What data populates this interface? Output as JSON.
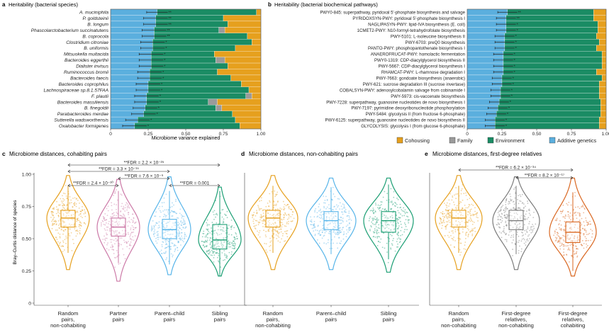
{
  "panel_a": {
    "letter": "a",
    "title": "Heritability (bacterial species)",
    "xlabel": "Microbiome variance explained",
    "ticks": [
      "0",
      "0.25",
      "0.50",
      "0.75",
      "1.00"
    ]
  },
  "panel_b": {
    "letter": "b",
    "title": "Heritability (bacterial biochemical pathways)",
    "ticks": [
      "0",
      "0.25",
      "0.50",
      "0.75",
      "1.00"
    ]
  },
  "legend": {
    "items": [
      {
        "label": "Cohousing",
        "color": "#E6A01E"
      },
      {
        "label": "Family",
        "color": "#9B9B9B"
      },
      {
        "label": "Environment",
        "color": "#1A8C64"
      },
      {
        "label": "Additive genetics",
        "color": "#5BAFDE"
      }
    ]
  },
  "panel_c": {
    "letter": "c",
    "title": "Microbiome distances, cohabiting pairs",
    "ylabel": "Bray–Curtis distance of species",
    "yticks": [
      "0",
      "0.25",
      "0.50",
      "0.75",
      "1.00"
    ],
    "categories": [
      "Random pairs, non-cohabiting",
      "Partner pairs",
      "Parent–child pairs",
      "Sibling pairs"
    ],
    "cat_lines": [
      [
        "Random",
        "pairs,",
        "non-cohabiting"
      ],
      [
        "Partner",
        "pairs"
      ],
      [
        "Parent–child",
        "pairs"
      ],
      [
        "Sibling",
        "pairs"
      ]
    ],
    "annotations": [
      "**FDR = 2.2 × 10⁻²⁵",
      "**FDR = 3.3 × 10⁻¹⁵",
      "**FDR = 2.4 × 10⁻¹⁰",
      "**FDR = 7.6 × 10⁻⁹",
      "**FDR = 0.001"
    ]
  },
  "panel_d": {
    "letter": "d",
    "title": "Microbiome distances, non-cohabiting pairs",
    "categories": [
      "Random pairs, non-cohabiting",
      "Parent–child pairs",
      "Sibling pairs"
    ],
    "cat_lines": [
      [
        "Random",
        "pairs,",
        "non-cohabiting"
      ],
      [
        "Parent–child",
        "pairs"
      ],
      [
        "Sibling",
        "pairs"
      ]
    ]
  },
  "panel_e": {
    "letter": "e",
    "title": "Microbiome distances, first-degree relatives",
    "categories": [
      "Random pairs, non-cohabiting",
      "First-degree relatives, non-cohabiting",
      "First-degree relatives, cohabiting"
    ],
    "cat_lines": [
      [
        "Random",
        "pairs,",
        "non-cohabiting"
      ],
      [
        "First-degree",
        "relatives,",
        "non-cohabiting"
      ],
      [
        "First-degree",
        "relatives,",
        "cohabiting"
      ]
    ],
    "annotations": [
      "**FDR = 6.2 × 10⁻³⁴",
      "**FDR = 8.2 × 10⁻¹⁷"
    ]
  },
  "chart_data": [
    {
      "type": "bar",
      "orientation": "horizontal-stacked",
      "title": "Heritability (bacterial species)",
      "xlabel": "Microbiome variance explained",
      "xlim": [
        0,
        1
      ],
      "categories": [
        "A. muciniphila",
        "P. goldsteinii",
        "B. longum",
        "Phascolarctobacterium succinatutens",
        "B. coprocola",
        "Clostridium citroniae",
        "B. uniformis",
        "Mitsuokella multacida",
        "Bacteroides eggerthii",
        "Dialister invisus",
        "Ruminococcus bromii",
        "Bacteroides faecis",
        "Bacteroides coprophilus",
        "Lachnospiraceae sp.8.1.57FAA",
        "F. plautii",
        "Bacteroides massiliensis",
        "B. finegoldii",
        "Parabacteroides merdae",
        "Sutterella wadsworthensis",
        "Oxalobacter formigenes"
      ],
      "sig": [
        "**",
        "**",
        "**",
        "**",
        "**",
        "*",
        "*",
        "*",
        "*",
        "*",
        "*",
        "*",
        "*",
        "*",
        "*",
        "*",
        "*",
        "*",
        "*",
        "*"
      ],
      "series": [
        {
          "name": "Additive genetics",
          "values": [
            0.31,
            0.3,
            0.3,
            0.29,
            0.29,
            0.28,
            0.28,
            0.27,
            0.27,
            0.27,
            0.26,
            0.26,
            0.25,
            0.25,
            0.24,
            0.24,
            0.23,
            0.22,
            0.18,
            0.16
          ],
          "err": [
            0.07,
            0.08,
            0.08,
            0.08,
            0.08,
            0.08,
            0.08,
            0.08,
            0.08,
            0.08,
            0.08,
            0.08,
            0.08,
            0.08,
            0.08,
            0.08,
            0.08,
            0.08,
            0.08,
            0.08
          ]
        },
        {
          "name": "Environment",
          "values": [
            0.66,
            0.45,
            0.48,
            0.43,
            0.62,
            0.66,
            0.55,
            0.42,
            0.43,
            0.51,
            0.45,
            0.54,
            0.62,
            0.67,
            0.66,
            0.41,
            0.47,
            0.59,
            0.65,
            0.7
          ]
        },
        {
          "name": "Family",
          "values": [
            0.0,
            0.0,
            0.0,
            0.04,
            0.0,
            0.0,
            0.0,
            0.0,
            0.06,
            0.0,
            0.0,
            0.0,
            0.0,
            0.0,
            0.04,
            0.06,
            0.04,
            0.0,
            0.0,
            0.0
          ]
        },
        {
          "name": "Cohousing",
          "values": [
            0.03,
            0.25,
            0.22,
            0.24,
            0.09,
            0.06,
            0.17,
            0.31,
            0.24,
            0.22,
            0.29,
            0.2,
            0.13,
            0.08,
            0.06,
            0.29,
            0.26,
            0.19,
            0.17,
            0.14
          ]
        }
      ]
    },
    {
      "type": "bar",
      "orientation": "horizontal-stacked",
      "title": "Heritability (bacterial biochemical pathways)",
      "xlim": [
        0,
        1
      ],
      "categories": [
        "PWY0-845: superpathway, pyridoxal 5'-phosphate biosynthesis and salvage",
        "PYRIDOXSYN-PWY: pyridoxal 5'-phosphate biosynthesis I",
        "NAGLIPASYN-PWY: lipid-IVA biosynthesis (E. coli)",
        "1CMET2-PWY: N10-formyl-tetrahydrofolate biosynthesis",
        "PWY-5101: L-isoleucine biosynthesis II",
        "PWY-6703: preQ0 biosynthesis",
        "PANTO-PWY: phosphopantothenate biosynthesis I",
        "ANAEROFRUCAT-PWY: homolactic fermentation",
        "PWY0-1319: CDP-diacylglycerol biosynthesis II",
        "PWY-5667: CDP-diacylglycerol biosynthesis I",
        "RHAMCAT-PWY: L-rhamnose degradation I",
        "PWY-7663: gondoate biosynthesis (anaerobic)",
        "PWY-621: sucrose degradation III (sucrose invertase)",
        "COBALSYN-PWY: adenosylcobalamin salvage from cobinamide I",
        "PWY-5973: cis-vaccenate biosynthesis",
        "PWY-7228: superpathway, guanosine nucleotides de novo biosynthesis I",
        "PWY-7197: pyrimidine deoxyribonucleotide phosphorylation",
        "PWY-5484: glycolysis II (from fructose 6-phosphate)",
        "PWY-6125: superpathway, guanosine nucleotides de novo biosynthesis II",
        "GLYCOLYSIS: glycolysis I (from glucose 6-phosphate)"
      ],
      "sig": [
        "**",
        "**",
        "*",
        "*",
        "*",
        "*",
        "*",
        "*",
        "*",
        "*",
        "*",
        "*",
        "*",
        "*",
        "*",
        "*",
        "*",
        "*",
        "*",
        "*"
      ],
      "series": [
        {
          "name": "Additive genetics",
          "values": [
            0.29,
            0.28,
            0.28,
            0.28,
            0.27,
            0.27,
            0.27,
            0.26,
            0.26,
            0.26,
            0.26,
            0.25,
            0.25,
            0.24,
            0.24,
            0.23,
            0.22,
            0.21,
            0.2,
            0.2
          ],
          "err": [
            0.07,
            0.07,
            0.07,
            0.07,
            0.07,
            0.07,
            0.07,
            0.07,
            0.07,
            0.07,
            0.07,
            0.07,
            0.07,
            0.07,
            0.07,
            0.07,
            0.07,
            0.07,
            0.07,
            0.07
          ]
        },
        {
          "name": "Environment",
          "values": [
            0.62,
            0.63,
            0.66,
            0.66,
            0.66,
            0.68,
            0.66,
            0.71,
            0.71,
            0.71,
            0.67,
            0.72,
            0.7,
            0.71,
            0.71,
            0.73,
            0.74,
            0.75,
            0.75,
            0.75
          ]
        },
        {
          "name": "Family",
          "values": [
            0.0,
            0.0,
            0.0,
            0.0,
            0.0,
            0.0,
            0.0,
            0.0,
            0.0,
            0.0,
            0.0,
            0.0,
            0.0,
            0.0,
            0.0,
            0.0,
            0.0,
            0.0,
            0.0,
            0.0
          ]
        },
        {
          "name": "Cohousing",
          "values": [
            0.09,
            0.09,
            0.06,
            0.06,
            0.07,
            0.05,
            0.07,
            0.03,
            0.03,
            0.03,
            0.07,
            0.03,
            0.05,
            0.05,
            0.05,
            0.04,
            0.04,
            0.04,
            0.05,
            0.05
          ]
        }
      ]
    },
    {
      "type": "violin",
      "title": "Microbiome distances, cohabiting pairs",
      "ylabel": "Bray–Curtis distance of species",
      "ylim": [
        0,
        1
      ],
      "categories": [
        "Random pairs, non-cohabiting",
        "Partner pairs",
        "Parent–child pairs",
        "Sibling pairs"
      ],
      "colors": [
        "#E6A01E",
        "#CC79A7",
        "#56B4E9",
        "#1A9E73"
      ],
      "box": [
        {
          "q1": 0.59,
          "median": 0.66,
          "q3": 0.72,
          "whisker_low": 0.39,
          "whisker_high": 0.91,
          "min": 0.26,
          "max": 0.99
        },
        {
          "q1": 0.52,
          "median": 0.59,
          "q3": 0.66,
          "whisker_low": 0.31,
          "whisker_high": 0.87,
          "min": 0.17,
          "max": 0.96
        },
        {
          "q1": 0.5,
          "median": 0.57,
          "q3": 0.65,
          "whisker_low": 0.3,
          "whisker_high": 0.87,
          "min": 0.22,
          "max": 0.98
        },
        {
          "q1": 0.42,
          "median": 0.49,
          "q3": 0.61,
          "whisker_low": 0.21,
          "whisker_high": 0.87,
          "min": 0.21,
          "max": 0.9
        }
      ],
      "comparisons": [
        {
          "from": "Random pairs, non-cohabiting",
          "to": "Sibling pairs",
          "label": "**FDR = 2.2 × 10⁻²⁵"
        },
        {
          "from": "Random pairs, non-cohabiting",
          "to": "Parent–child pairs",
          "label": "**FDR = 3.3 × 10⁻¹⁵"
        },
        {
          "from": "Random pairs, non-cohabiting",
          "to": "Partner pairs",
          "label": "**FDR = 2.4 × 10⁻¹⁰"
        },
        {
          "from": "Partner pairs",
          "to": "Parent–child pairs",
          "label": "**FDR = 7.6 × 10⁻⁹"
        },
        {
          "from": "Parent–child pairs",
          "to": "Sibling pairs",
          "label": "**FDR = 0.001"
        }
      ]
    },
    {
      "type": "violin",
      "title": "Microbiome distances, non-cohabiting pairs",
      "ylim": [
        0,
        1
      ],
      "categories": [
        "Random pairs, non-cohabiting",
        "Parent–child pairs",
        "Sibling pairs"
      ],
      "colors": [
        "#E6A01E",
        "#56B4E9",
        "#1A9E73"
      ],
      "box": [
        {
          "q1": 0.59,
          "median": 0.66,
          "q3": 0.72,
          "whisker_low": 0.39,
          "whisker_high": 0.91,
          "min": 0.26,
          "max": 0.99
        },
        {
          "q1": 0.57,
          "median": 0.64,
          "q3": 0.71,
          "whisker_low": 0.38,
          "whisker_high": 0.9,
          "min": 0.26,
          "max": 0.97
        },
        {
          "q1": 0.55,
          "median": 0.64,
          "q3": 0.71,
          "whisker_low": 0.34,
          "whisker_high": 0.92,
          "min": 0.24,
          "max": 0.97
        }
      ]
    },
    {
      "type": "violin",
      "title": "Microbiome distances, first-degree relatives",
      "ylim": [
        0,
        1
      ],
      "categories": [
        "Random pairs, non-cohabiting",
        "First-degree relatives, non-cohabiting",
        "First-degree relatives, cohabiting"
      ],
      "colors": [
        "#E6A01E",
        "#7A7A7A",
        "#D9661F"
      ],
      "box": [
        {
          "q1": 0.59,
          "median": 0.66,
          "q3": 0.72,
          "whisker_low": 0.39,
          "whisker_high": 0.91,
          "min": 0.26,
          "max": 0.99
        },
        {
          "q1": 0.57,
          "median": 0.64,
          "q3": 0.72,
          "whisker_low": 0.38,
          "whisker_high": 0.91,
          "min": 0.26,
          "max": 0.98
        },
        {
          "q1": 0.47,
          "median": 0.55,
          "q3": 0.63,
          "whisker_low": 0.25,
          "whisker_high": 0.86,
          "min": 0.21,
          "max": 0.97
        }
      ],
      "comparisons": [
        {
          "from": "Random pairs, non-cohabiting",
          "to": "First-degree relatives, cohabiting",
          "label": "**FDR = 6.2 × 10⁻³⁴"
        },
        {
          "from": "First-degree relatives, non-cohabiting",
          "to": "First-degree relatives, cohabiting",
          "label": "**FDR = 8.2 × 10⁻¹⁷"
        }
      ]
    }
  ]
}
